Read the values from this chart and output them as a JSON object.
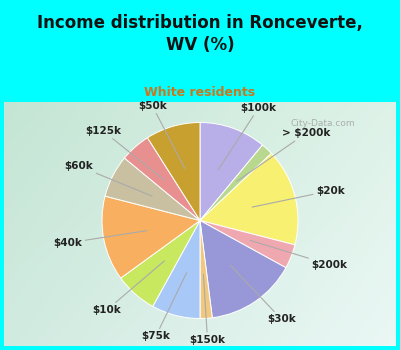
{
  "title": "Income distribution in Ronceverte,\nWV (%)",
  "subtitle": "White residents",
  "title_color": "#111111",
  "subtitle_color": "#c87820",
  "bg_cyan": "#00ffff",
  "watermark": "City-Data.com",
  "labels": [
    "$100k",
    "> $200k",
    "$20k",
    "$200k",
    "$30k",
    "$150k",
    "$75k",
    "$10k",
    "$40k",
    "$60k",
    "$125k",
    "$50k"
  ],
  "values": [
    11,
    2,
    16,
    4,
    15,
    2,
    8,
    7,
    14,
    7,
    5,
    9
  ],
  "colors": [
    "#b8aee8",
    "#b8d890",
    "#f8f070",
    "#f0a8b0",
    "#9898d8",
    "#f0c880",
    "#a8c8f8",
    "#c8e860",
    "#f8b060",
    "#c8c0a0",
    "#e89090",
    "#c8a030"
  ],
  "label_fontsize": 7.5,
  "title_fontsize": 12
}
